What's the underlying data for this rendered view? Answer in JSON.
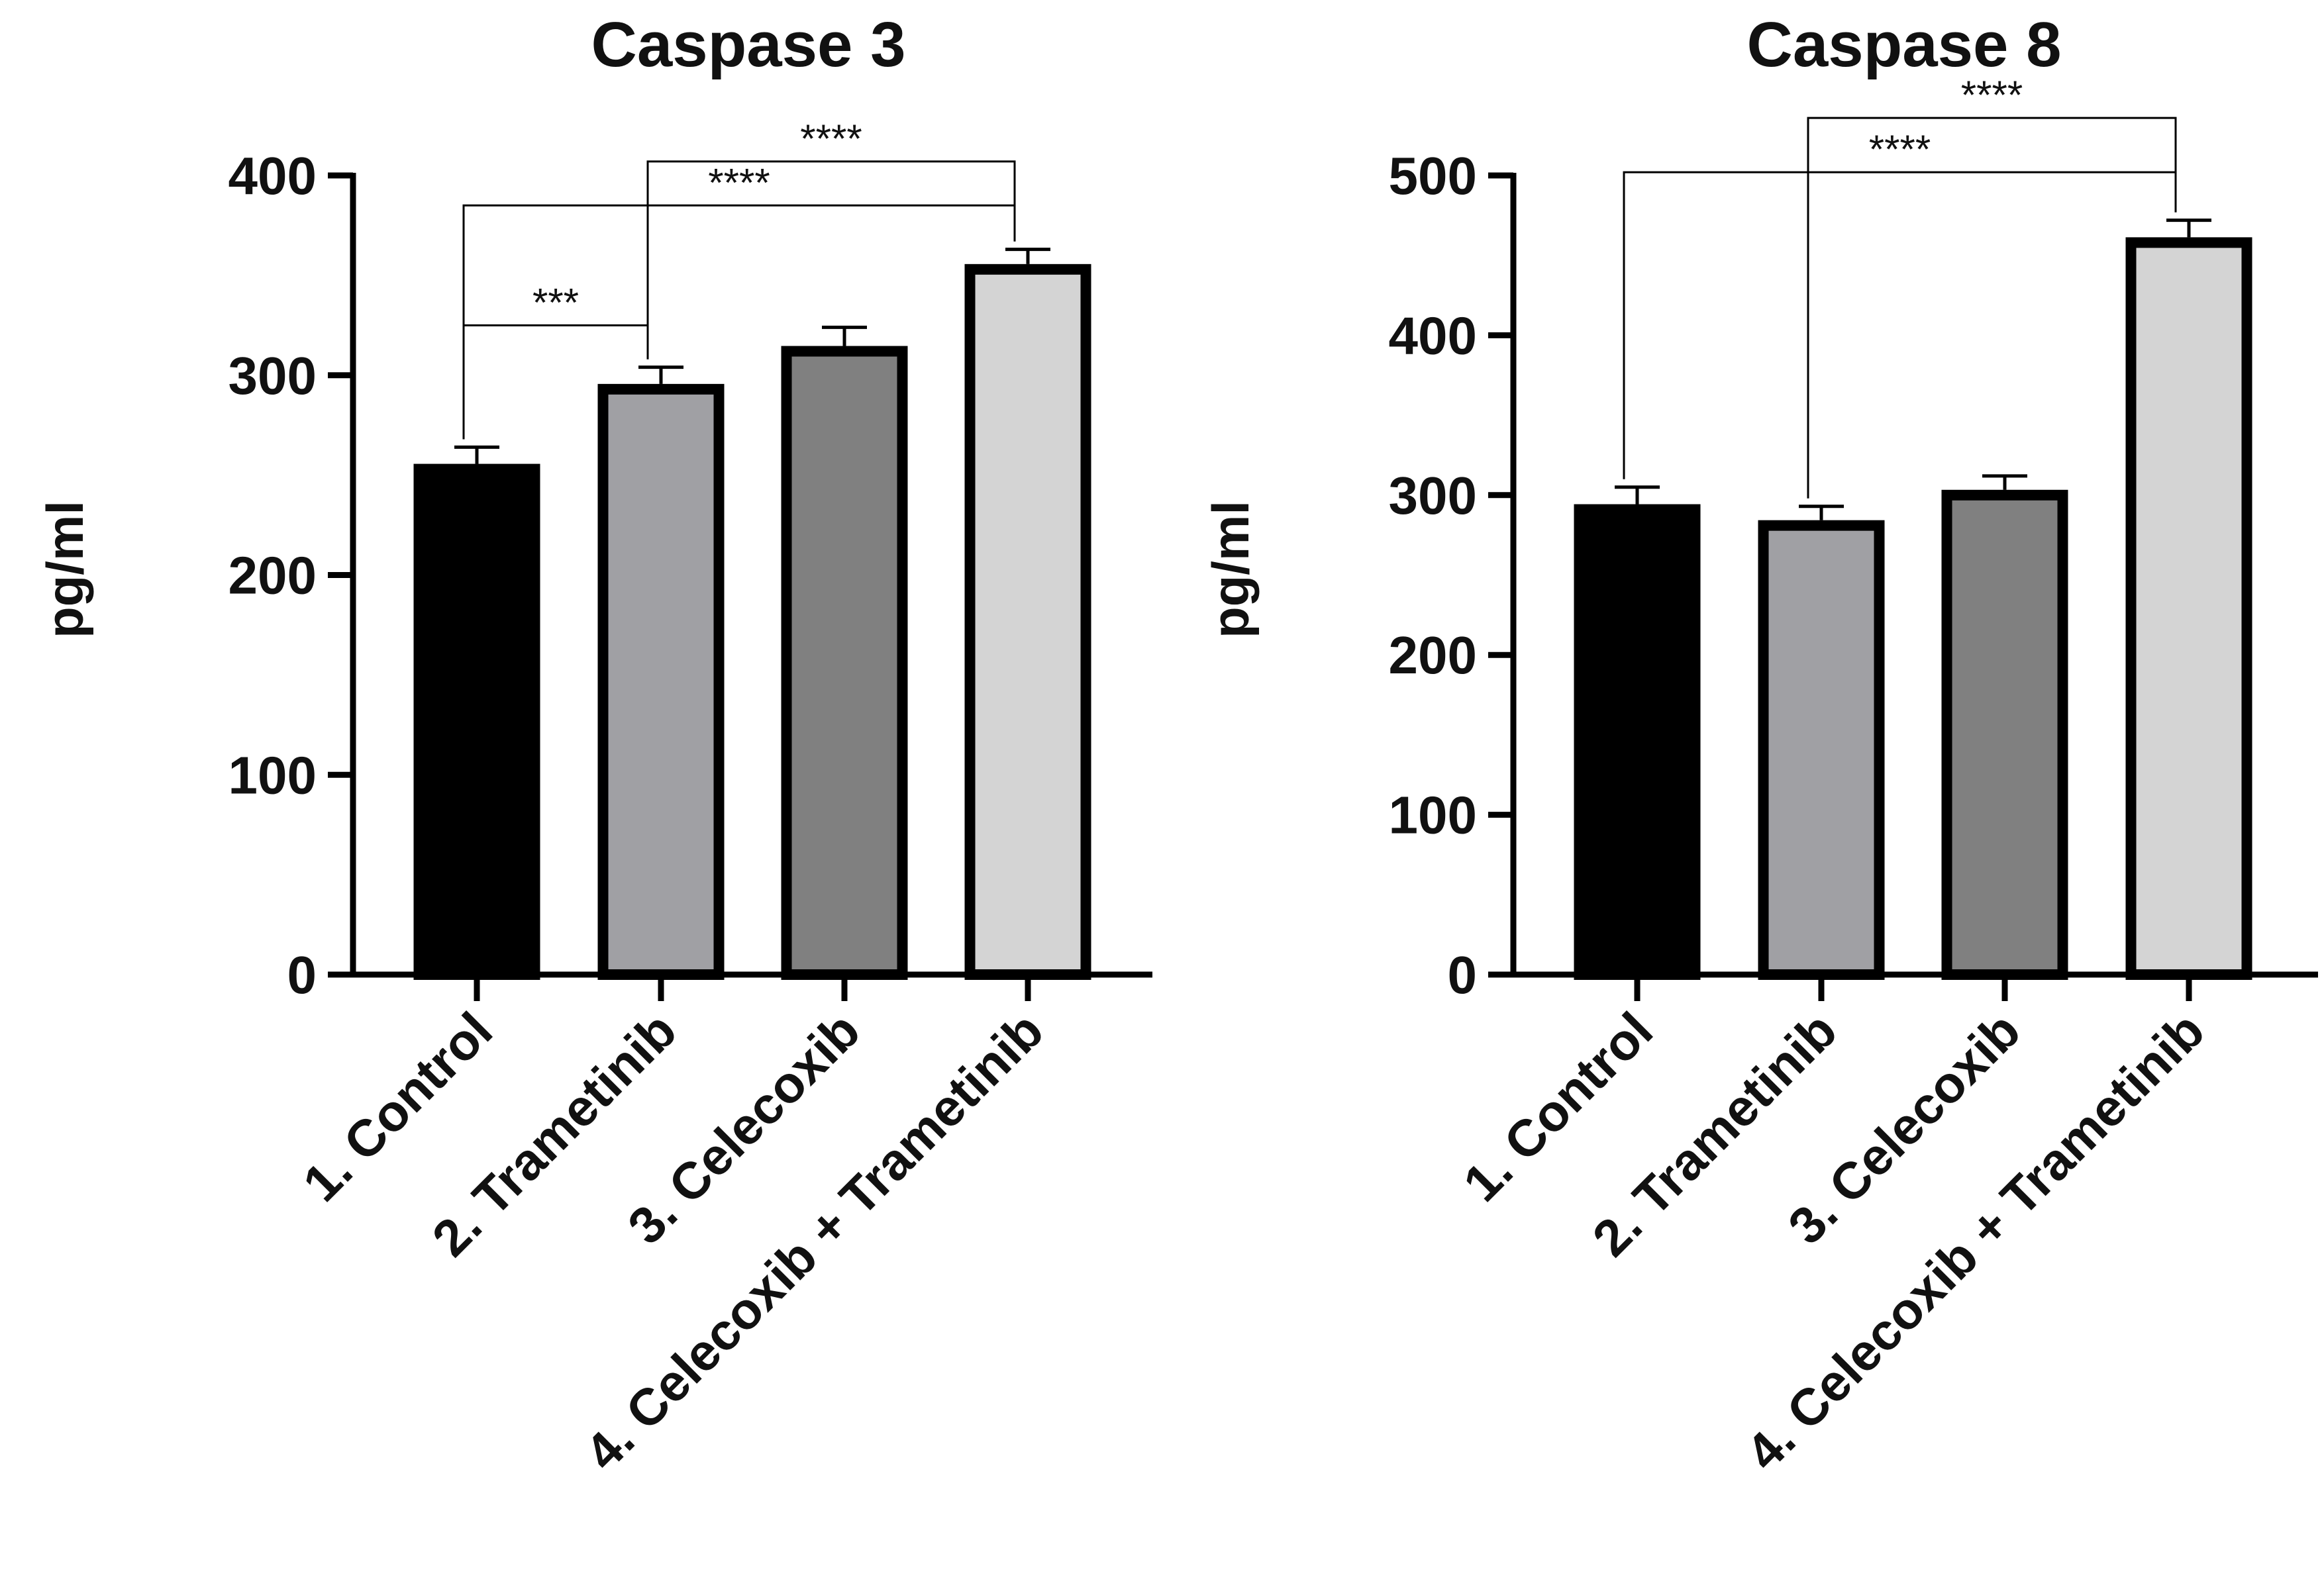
{
  "chart_data": [
    {
      "type": "bar",
      "title": "Caspase 3",
      "ylabel": "pg/ml",
      "xlabel": "",
      "ylim": [
        0,
        400
      ],
      "yticks": [
        0,
        100,
        200,
        300,
        400
      ],
      "categories": [
        "1. Control",
        "2. Trametinib",
        "3. Celecoxib",
        "4. Celecoxib + Trametinib"
      ],
      "values": [
        253,
        293,
        312,
        353
      ],
      "errors": [
        11,
        11,
        12,
        10
      ],
      "colors": [
        "#000000",
        "#a0a0a4",
        "#808080",
        "#d4d4d4"
      ],
      "significance": [
        {
          "from": 0,
          "to": 1,
          "label": "***",
          "y": 325
        },
        {
          "from": 0,
          "to": 3,
          "label": "****",
          "y": 385
        },
        {
          "from": 1,
          "to": 3,
          "label": "****",
          "y": 407
        }
      ]
    },
    {
      "type": "bar",
      "title": "Caspase 8",
      "ylabel": "pg/ml",
      "xlabel": "",
      "ylim": [
        0,
        500
      ],
      "yticks": [
        0,
        100,
        200,
        300,
        400,
        500
      ],
      "categories": [
        "1. Control",
        "2. Trametinib",
        "3. Celecoxib",
        "4. Celecoxib + Trametinib"
      ],
      "values": [
        291,
        281,
        300,
        458
      ],
      "errors": [
        14,
        12,
        12,
        14
      ],
      "colors": [
        "#000000",
        "#a0a0a4",
        "#808080",
        "#d4d4d4"
      ],
      "significance": [
        {
          "from": 0,
          "to": 3,
          "label": "****",
          "y": 502
        },
        {
          "from": 1,
          "to": 3,
          "label": "****",
          "y": 536
        }
      ]
    }
  ]
}
